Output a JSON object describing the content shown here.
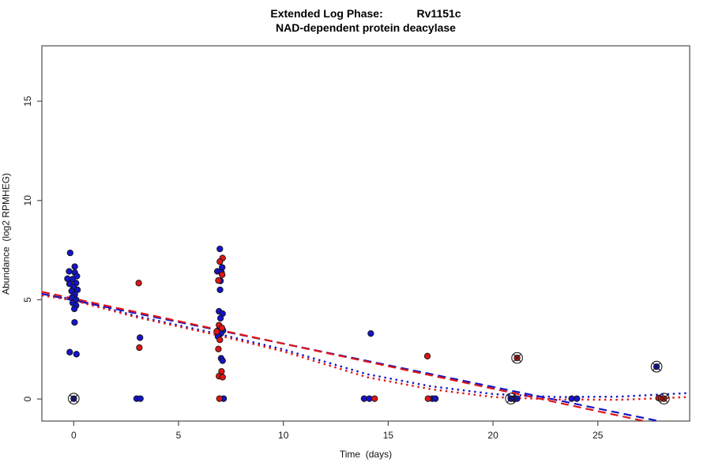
{
  "chart_data": {
    "type": "scatter",
    "title": "Extended Log Phase:           Rv1151c",
    "subtitle": "NAD-dependent protein deacylase",
    "xlabel": "Time  (days)",
    "ylabel": "Abundance  (log2 RPMHEG)",
    "xlim": [
      -1.52,
      29.38
    ],
    "ylim": [
      -1.11,
      17.79
    ],
    "x_ticks": [
      0,
      5,
      10,
      15,
      20,
      25
    ],
    "y_ticks": [
      0,
      5,
      10,
      15
    ],
    "grid": false,
    "legend": "none",
    "colors": {
      "blue": "#1414c8",
      "red": "#e01414",
      "axis": "#4d4d4d",
      "tick_text": "#1a1a1a"
    },
    "series": [
      {
        "name": "blue-replicates",
        "marker": "dot",
        "color": "blue",
        "points": [
          [
            -0.17,
            7.36
          ],
          [
            0.05,
            6.67
          ],
          [
            -0.22,
            6.43
          ],
          [
            0.05,
            6.37
          ],
          [
            0.15,
            6.19
          ],
          [
            -0.3,
            6.06
          ],
          [
            -0.05,
            6.04
          ],
          [
            0.11,
            5.84
          ],
          [
            -0.2,
            5.8
          ],
          [
            -0.01,
            5.64
          ],
          [
            0.18,
            5.5
          ],
          [
            -0.1,
            5.44
          ],
          [
            0.05,
            5.26
          ],
          [
            -0.08,
            5.11
          ],
          [
            0.11,
            5.0
          ],
          [
            -0.05,
            4.84
          ],
          [
            0.11,
            4.71
          ],
          [
            0.03,
            4.54
          ],
          [
            0.04,
            3.86
          ],
          [
            -0.19,
            2.36
          ],
          [
            0.13,
            2.26
          ],
          [
            3.16,
            3.09
          ],
          [
            3.0,
            0.02
          ],
          [
            3.18,
            0.02
          ],
          [
            6.97,
            7.56
          ],
          [
            7.08,
            6.63
          ],
          [
            6.85,
            6.43
          ],
          [
            7.05,
            6.38
          ],
          [
            7.0,
            5.95
          ],
          [
            6.98,
            5.5
          ],
          [
            6.93,
            4.42
          ],
          [
            7.1,
            4.3
          ],
          [
            7.0,
            4.07
          ],
          [
            6.95,
            3.52
          ],
          [
            7.12,
            3.45
          ],
          [
            7.02,
            3.3
          ],
          [
            6.88,
            3.15
          ],
          [
            7.03,
            2.05
          ],
          [
            7.1,
            1.93
          ],
          [
            7.15,
            0.02
          ],
          [
            14.17,
            3.3
          ],
          [
            13.85,
            0.02
          ],
          [
            14.1,
            0.02
          ],
          [
            17.1,
            0.02
          ],
          [
            17.25,
            0.02
          ],
          [
            21.0,
            0.02
          ],
          [
            21.15,
            0.02
          ],
          [
            23.75,
            0.02
          ],
          [
            24.0,
            0.02
          ]
        ]
      },
      {
        "name": "red-replicates",
        "marker": "dot",
        "color": "red",
        "points": [
          [
            3.1,
            5.84
          ],
          [
            3.13,
            2.59
          ],
          [
            7.1,
            7.1
          ],
          [
            6.97,
            6.92
          ],
          [
            7.08,
            6.26
          ],
          [
            6.9,
            5.97
          ],
          [
            6.93,
            3.72
          ],
          [
            7.07,
            3.58
          ],
          [
            6.82,
            3.4
          ],
          [
            6.97,
            2.98
          ],
          [
            6.9,
            2.52
          ],
          [
            7.05,
            1.39
          ],
          [
            6.93,
            1.15
          ],
          [
            7.1,
            1.1
          ],
          [
            6.95,
            0.02
          ],
          [
            14.35,
            0.02
          ],
          [
            16.87,
            2.16
          ],
          [
            16.9,
            0.02
          ],
          [
            27.9,
            0.05
          ]
        ]
      },
      {
        "name": "blue-flagged",
        "marker": "circle-x",
        "color": "blue",
        "points": [
          [
            0.0,
            0.02
          ],
          [
            20.85,
            0.02
          ],
          [
            27.8,
            1.63
          ]
        ]
      },
      {
        "name": "red-flagged",
        "marker": "circle-x",
        "color": "red",
        "points": [
          [
            21.15,
            2.07
          ],
          [
            28.15,
            0.02
          ]
        ]
      }
    ],
    "trend_lines": [
      {
        "name": "blue-linear-fit",
        "color": "blue",
        "style": "longdash",
        "points": [
          [
            -1.52,
            5.3
          ],
          [
            27.9,
            -1.11
          ]
        ]
      },
      {
        "name": "red-linear-fit",
        "color": "red",
        "style": "longdash",
        "points": [
          [
            -1.52,
            5.4
          ],
          [
            27.2,
            -1.11
          ]
        ]
      },
      {
        "name": "blue-curved-fit",
        "color": "blue",
        "style": "dotted",
        "points": [
          [
            -1.52,
            5.28
          ],
          [
            0,
            5.02
          ],
          [
            3,
            4.18
          ],
          [
            7,
            3.25
          ],
          [
            10,
            2.5
          ],
          [
            14,
            1.25
          ],
          [
            17,
            0.65
          ],
          [
            20,
            0.25
          ],
          [
            23,
            0.1
          ],
          [
            26,
            0.12
          ],
          [
            29.3,
            0.3
          ]
        ]
      },
      {
        "name": "red-curved-fit",
        "color": "red",
        "style": "dotted",
        "points": [
          [
            -1.52,
            5.22
          ],
          [
            0,
            4.96
          ],
          [
            3,
            4.12
          ],
          [
            7,
            3.18
          ],
          [
            10,
            2.4
          ],
          [
            14,
            1.1
          ],
          [
            17,
            0.5
          ],
          [
            20,
            0.1
          ],
          [
            23,
            -0.02
          ],
          [
            26,
            -0.04
          ],
          [
            29.3,
            0.1
          ]
        ]
      }
    ]
  }
}
